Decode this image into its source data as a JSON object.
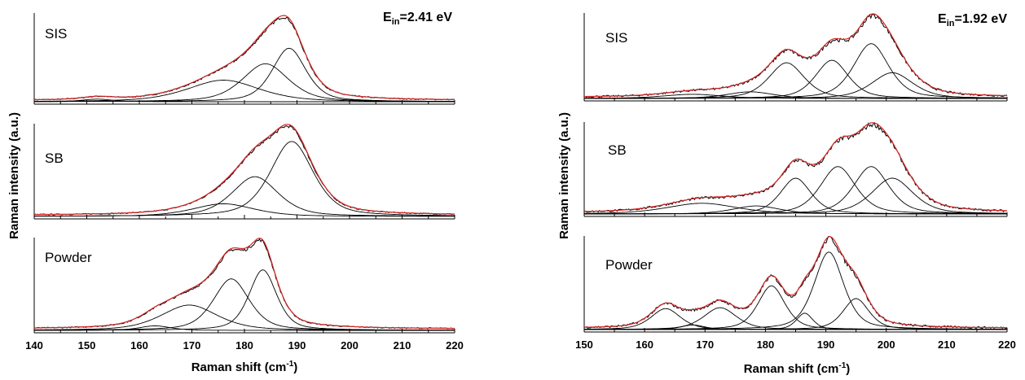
{
  "figure": {
    "ylabel": "Raman intensity (a.u.)",
    "xlabel_main": "Raman shift (cm",
    "xlabel_sup": "-1",
    "xlabel_close": ")"
  },
  "colors": {
    "data": "#000000",
    "fit_total": "#d62728",
    "components": "#000000"
  },
  "chart_data": [
    {
      "type": "line",
      "panel": "left",
      "energy_label": {
        "prefix": "E",
        "sub": "in",
        "value": "=2.41 eV"
      },
      "xlim": [
        140,
        220
      ],
      "xticks": [
        140,
        150,
        160,
        170,
        180,
        190,
        200,
        210,
        220
      ],
      "xlabel": "Raman shift (cm-1)",
      "ylabel": "Raman intensity (a.u.)",
      "subplots": [
        {
          "label": "SIS",
          "ymax": 1.0,
          "peak_norm": 0.98,
          "components": [
            {
              "center": 152,
              "height": 0.03,
              "width": 3
            },
            {
              "center": 176,
              "height": 0.25,
              "width": 7
            },
            {
              "center": 184,
              "height": 0.44,
              "width": 4.5
            },
            {
              "center": 188.5,
              "height": 0.62,
              "width": 3.3
            }
          ]
        },
        {
          "label": "SB",
          "ymax": 1.0,
          "peak_norm": 1.0,
          "components": [
            {
              "center": 176,
              "height": 0.14,
              "width": 6
            },
            {
              "center": 182,
              "height": 0.44,
              "width": 4.5
            },
            {
              "center": 189,
              "height": 0.83,
              "width": 4.2
            }
          ]
        },
        {
          "label": "Powder",
          "ymax": 1.0,
          "peak_norm": 1.0,
          "components": [
            {
              "center": 163,
              "height": 0.05,
              "width": 3
            },
            {
              "center": 169.5,
              "height": 0.28,
              "width": 5.5
            },
            {
              "center": 177.5,
              "height": 0.57,
              "width": 3.5
            },
            {
              "center": 183.5,
              "height": 0.67,
              "width": 2.7
            }
          ]
        }
      ]
    },
    {
      "type": "line",
      "panel": "right",
      "energy_label": {
        "prefix": "E",
        "sub": "in",
        "value": "=1.92 eV"
      },
      "xlim": [
        150,
        220
      ],
      "xticks": [
        150,
        160,
        170,
        180,
        190,
        200,
        210,
        220
      ],
      "xlabel": "Raman shift (cm-1)",
      "ylabel": "Raman intensity (a.u.)",
      "subplots": [
        {
          "label": "SIS",
          "ymax": 1.0,
          "peak_norm": 1.0,
          "components": [
            {
              "center": 168,
              "height": 0.05,
              "width": 5
            },
            {
              "center": 177.5,
              "height": 0.08,
              "width": 4
            },
            {
              "center": 183.5,
              "height": 0.43,
              "width": 3
            },
            {
              "center": 191,
              "height": 0.46,
              "width": 2.8
            },
            {
              "center": 197.5,
              "height": 0.66,
              "width": 3
            },
            {
              "center": 201,
              "height": 0.31,
              "width": 3.5
            }
          ]
        },
        {
          "label": "SB",
          "ymax": 1.0,
          "peak_norm": 1.0,
          "components": [
            {
              "center": 169.5,
              "height": 0.12,
              "width": 6
            },
            {
              "center": 178.5,
              "height": 0.09,
              "width": 4
            },
            {
              "center": 185,
              "height": 0.4,
              "width": 2.6
            },
            {
              "center": 192,
              "height": 0.53,
              "width": 3
            },
            {
              "center": 197.5,
              "height": 0.53,
              "width": 3
            },
            {
              "center": 201,
              "height": 0.4,
              "width": 3.5
            }
          ]
        },
        {
          "label": "Powder",
          "ymax": 1.0,
          "peak_norm": 1.0,
          "components": [
            {
              "center": 163.5,
              "height": 0.23,
              "width": 2.5
            },
            {
              "center": 168,
              "height": 0.05,
              "width": 2
            },
            {
              "center": 172.5,
              "height": 0.24,
              "width": 2.8
            },
            {
              "center": 181,
              "height": 0.48,
              "width": 2.3
            },
            {
              "center": 186.5,
              "height": 0.18,
              "width": 1.4
            },
            {
              "center": 190.5,
              "height": 0.85,
              "width": 2.5
            },
            {
              "center": 195,
              "height": 0.34,
              "width": 2.2
            }
          ]
        }
      ]
    }
  ]
}
